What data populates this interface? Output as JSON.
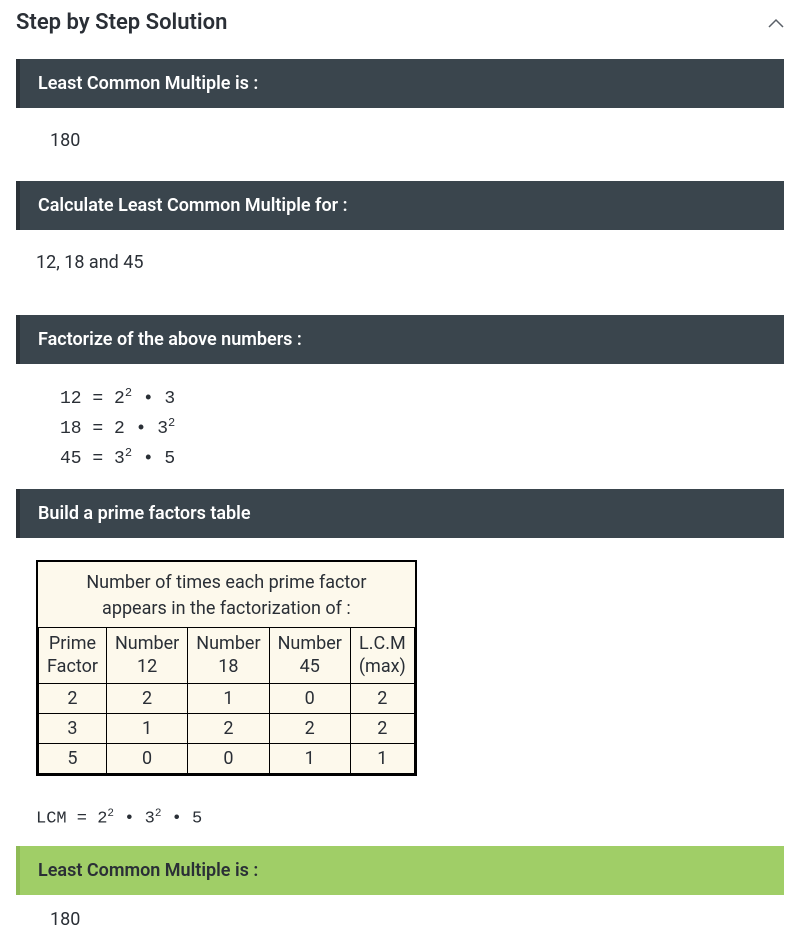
{
  "colors": {
    "dark_header_bg": "#3a454d",
    "dark_header_border": "#2b3238",
    "green_header_bg": "#a0ce67",
    "green_header_border": "#8fbb56",
    "table_bg": "#fdf9ec",
    "text": "#2a2f36"
  },
  "title": "Step by Step Solution",
  "sections": {
    "lcm_result": {
      "header": "Least Common Multiple is :",
      "value": "180"
    },
    "calculate": {
      "header": "Calculate Least Common Multiple for :",
      "value": "12, 18 and 45"
    },
    "factorize": {
      "header": "Factorize of the above numbers :",
      "lines": [
        {
          "n": "12",
          "expr_html": "2<span class='sup'>2</span> • 3"
        },
        {
          "n": "18",
          "expr_html": "2 • 3<span class='sup'>2</span>"
        },
        {
          "n": "45",
          "expr_html": "3<span class='sup'>2</span> • 5"
        }
      ]
    },
    "table": {
      "header": "Build a prime factors table",
      "caption_l1": "Number of times each prime factor",
      "caption_l2": "appears in the factorization of :",
      "columns": [
        {
          "l1": "Prime",
          "l2": "Factor"
        },
        {
          "l1": "Number",
          "l2": "12"
        },
        {
          "l1": "Number",
          "l2": "18"
        },
        {
          "l1": "Number",
          "l2": "45"
        },
        {
          "l1": "L.C.M",
          "l2": "(max)"
        }
      ],
      "rows": [
        [
          "2",
          "2",
          "1",
          "0",
          "2"
        ],
        [
          "3",
          "1",
          "2",
          "2",
          "2"
        ],
        [
          "5",
          "0",
          "0",
          "1",
          "1"
        ]
      ],
      "lcm_expr_html": "LCM = 2<span class='sup'>2</span> • 3<span class='sup'>2</span> • 5"
    },
    "final": {
      "header": "Least Common Multiple is :",
      "value": "180"
    }
  }
}
